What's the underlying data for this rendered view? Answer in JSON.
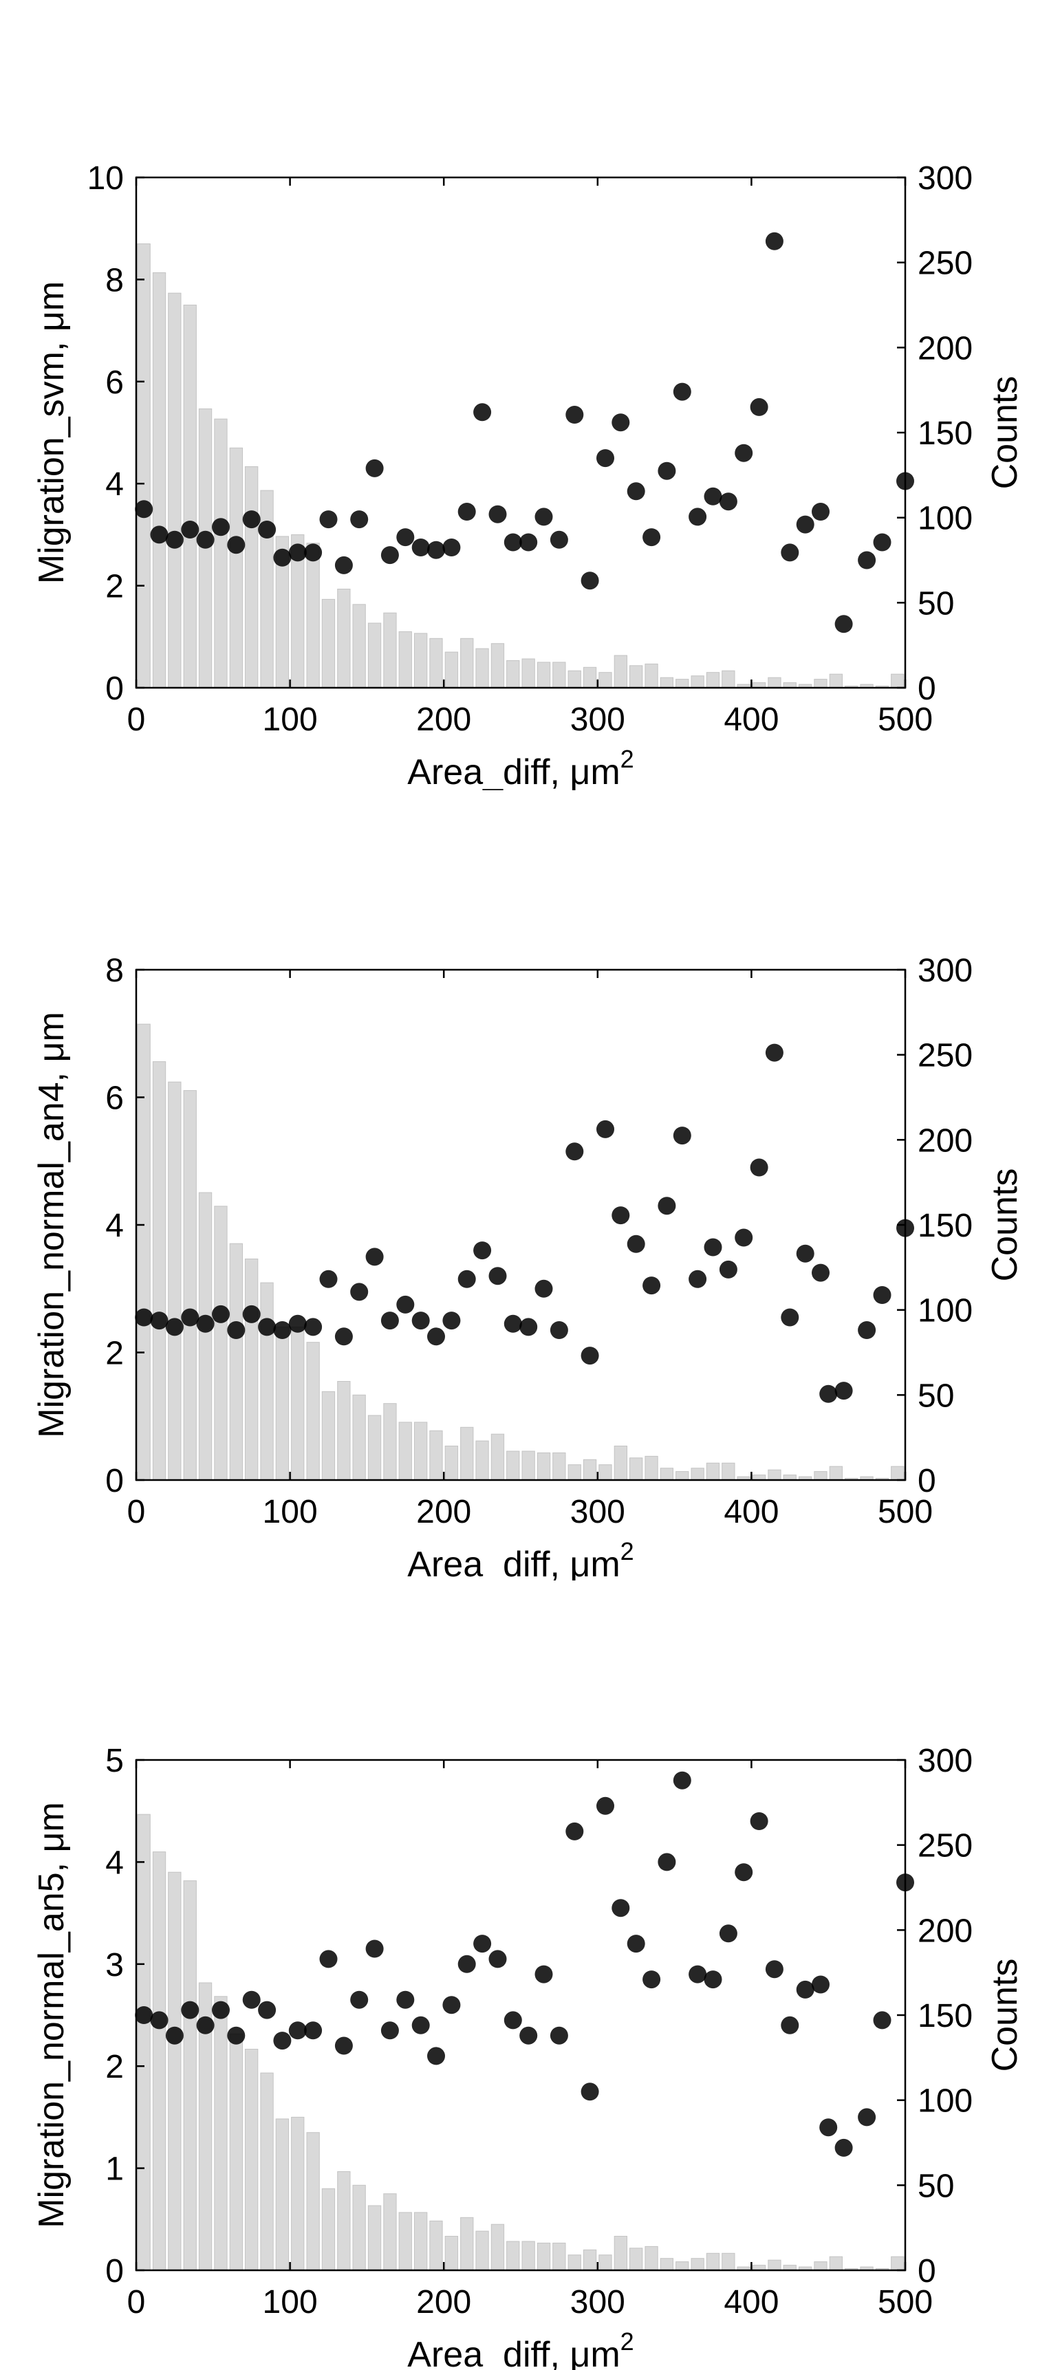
{
  "colors": {
    "bars": "#d9d9d9",
    "bar_edge": "#c4c4c4",
    "points": "#000000",
    "axes": "#000000",
    "background": "#ffffff"
  },
  "chart_data": [
    {
      "type": "bar+scatter",
      "xlabel": "Area_diff, μm",
      "xlabel_superscript": "2",
      "ylabel_left": "Migration_svm, μm",
      "ylabel_right": "Counts",
      "xlim": [
        0,
        500
      ],
      "ylim_left": [
        0,
        10
      ],
      "ylim_right": [
        0,
        300
      ],
      "xticks": [
        0,
        100,
        200,
        300,
        400,
        500
      ],
      "yticks_left": [
        0,
        2,
        4,
        6,
        8,
        10
      ],
      "yticks_right": [
        0,
        50,
        100,
        150,
        200,
        250,
        300
      ],
      "histogram": {
        "bin_width": 10,
        "counts": [
          261,
          244,
          232,
          225,
          164,
          158,
          141,
          130,
          116,
          89,
          90,
          85,
          52,
          58,
          49,
          38,
          44,
          33,
          32,
          29,
          21,
          29,
          23,
          26,
          16,
          17,
          15,
          15,
          10,
          12,
          9,
          19,
          13,
          14,
          6,
          5,
          7,
          9,
          10,
          2,
          3,
          6,
          3,
          2,
          5,
          8,
          1,
          2,
          1,
          8,
          5
        ]
      },
      "scatter": {
        "x": [
          5,
          15,
          25,
          35,
          45,
          55,
          65,
          75,
          85,
          95,
          105,
          115,
          125,
          135,
          145,
          155,
          165,
          175,
          185,
          195,
          205,
          215,
          225,
          235,
          245,
          255,
          265,
          275,
          285,
          295,
          305,
          315,
          325,
          335,
          345,
          355,
          365,
          375,
          385,
          395,
          405,
          415,
          425,
          435,
          445,
          460,
          475,
          485,
          500
        ],
        "y": [
          3.5,
          3.0,
          2.9,
          3.1,
          2.9,
          3.15,
          2.8,
          3.3,
          3.1,
          2.55,
          2.65,
          2.65,
          3.3,
          2.4,
          3.3,
          4.3,
          2.6,
          2.95,
          2.75,
          2.7,
          2.75,
          3.45,
          5.4,
          3.4,
          2.85,
          2.85,
          3.35,
          2.9,
          5.35,
          2.1,
          4.5,
          5.2,
          3.85,
          2.95,
          4.25,
          5.8,
          3.35,
          3.75,
          3.65,
          4.6,
          5.5,
          8.75,
          2.65,
          3.2,
          3.45,
          1.25,
          2.5,
          2.85,
          4.05
        ]
      }
    },
    {
      "type": "bar+scatter",
      "xlabel": "Area_diff, μm",
      "xlabel_superscript": "2",
      "ylabel_left": "Migration_normal_an4, μm",
      "ylabel_right": "Counts",
      "xlim": [
        0,
        500
      ],
      "ylim_left": [
        0,
        8
      ],
      "ylim_right": [
        0,
        300
      ],
      "xticks": [
        0,
        100,
        200,
        300,
        400,
        500
      ],
      "yticks_left": [
        0,
        2,
        4,
        6,
        8
      ],
      "yticks_right": [
        0,
        50,
        100,
        150,
        200,
        250,
        300
      ],
      "histogram": {
        "bin_width": 10,
        "counts": [
          268,
          246,
          234,
          229,
          169,
          161,
          139,
          130,
          116,
          90,
          90,
          81,
          52,
          58,
          50,
          38,
          45,
          34,
          34,
          29,
          20,
          31,
          23,
          27,
          17,
          17,
          16,
          16,
          9,
          12,
          9,
          20,
          13,
          14,
          7,
          5,
          7,
          10,
          10,
          2,
          3,
          6,
          3,
          2,
          5,
          8,
          1,
          2,
          1,
          8,
          5
        ]
      },
      "scatter": {
        "x": [
          5,
          15,
          25,
          35,
          45,
          55,
          65,
          75,
          85,
          95,
          105,
          115,
          125,
          135,
          145,
          155,
          165,
          175,
          185,
          195,
          205,
          215,
          225,
          235,
          245,
          255,
          265,
          275,
          285,
          295,
          305,
          315,
          325,
          335,
          345,
          355,
          365,
          375,
          385,
          395,
          405,
          415,
          425,
          435,
          445,
          450,
          460,
          475,
          485,
          500
        ],
        "y": [
          2.55,
          2.5,
          2.4,
          2.55,
          2.45,
          2.6,
          2.35,
          2.6,
          2.4,
          2.35,
          2.45,
          2.4,
          3.15,
          2.25,
          2.95,
          3.5,
          2.5,
          2.75,
          2.5,
          2.25,
          2.5,
          3.15,
          3.6,
          3.2,
          2.45,
          2.4,
          3.0,
          2.35,
          5.15,
          1.95,
          5.5,
          4.15,
          3.7,
          3.05,
          4.3,
          5.4,
          3.15,
          3.65,
          3.3,
          3.8,
          4.9,
          6.7,
          2.55,
          3.55,
          3.25,
          1.35,
          1.4,
          2.35,
          2.9,
          3.95
        ]
      }
    },
    {
      "type": "bar+scatter",
      "xlabel": "Area_diff, μm",
      "xlabel_superscript": "2",
      "ylabel_left": "Migration_normal_an5, μm",
      "ylabel_right": "Counts",
      "xlim": [
        0,
        500
      ],
      "ylim_left": [
        0,
        5
      ],
      "ylim_right": [
        0,
        300
      ],
      "xticks": [
        0,
        100,
        200,
        300,
        400,
        500
      ],
      "yticks_left": [
        0,
        1,
        2,
        3,
        4,
        5
      ],
      "yticks_right": [
        0,
        50,
        100,
        150,
        200,
        250,
        300
      ],
      "histogram": {
        "bin_width": 10,
        "counts": [
          268,
          246,
          234,
          229,
          169,
          161,
          139,
          130,
          116,
          89,
          90,
          81,
          48,
          58,
          50,
          38,
          45,
          34,
          34,
          29,
          20,
          31,
          23,
          27,
          17,
          17,
          16,
          16,
          9,
          12,
          9,
          20,
          13,
          14,
          7,
          5,
          7,
          10,
          10,
          2,
          3,
          6,
          3,
          2,
          5,
          8,
          1,
          2,
          1,
          8,
          5
        ]
      },
      "scatter": {
        "x": [
          5,
          15,
          25,
          35,
          45,
          55,
          65,
          75,
          85,
          95,
          105,
          115,
          125,
          135,
          145,
          155,
          165,
          175,
          185,
          195,
          205,
          215,
          225,
          235,
          245,
          255,
          265,
          275,
          285,
          295,
          305,
          315,
          325,
          335,
          345,
          355,
          365,
          375,
          385,
          395,
          405,
          415,
          425,
          435,
          445,
          450,
          460,
          475,
          485,
          500
        ],
        "y": [
          2.5,
          2.45,
          2.3,
          2.55,
          2.4,
          2.55,
          2.3,
          2.65,
          2.55,
          2.25,
          2.35,
          2.35,
          3.05,
          2.2,
          2.65,
          3.15,
          2.35,
          2.65,
          2.4,
          2.1,
          2.6,
          3.0,
          3.2,
          3.05,
          2.45,
          2.3,
          2.9,
          2.3,
          4.3,
          1.75,
          4.55,
          3.55,
          3.2,
          2.85,
          4.0,
          4.8,
          2.9,
          2.85,
          3.3,
          3.9,
          4.4,
          2.95,
          2.4,
          2.75,
          2.8,
          1.4,
          1.2,
          1.5,
          2.45,
          3.8
        ]
      }
    }
  ]
}
